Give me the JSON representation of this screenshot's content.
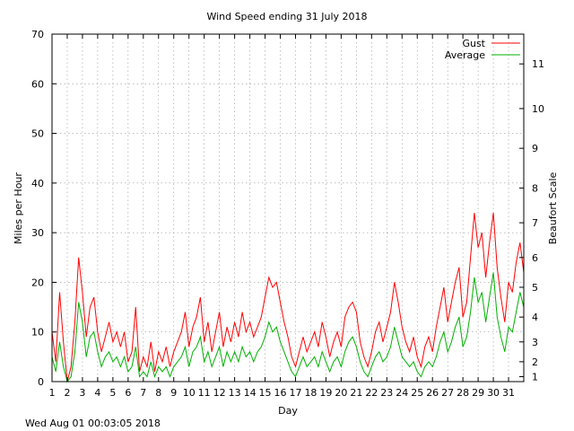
{
  "chart_data": {
    "type": "line",
    "title": "Wind Speed ending 31 July 2018",
    "xlabel": "Day",
    "ylabel": "Miles per Hour",
    "y2label": "Beaufort Scale",
    "footer": "Wed Aug 01 00:03:05 2018",
    "xlim": [
      1,
      32
    ],
    "ylim": [
      0,
      70
    ],
    "grid": true,
    "legend_position": "top-right",
    "x_ticks": [
      1,
      2,
      3,
      4,
      5,
      6,
      7,
      8,
      9,
      10,
      11,
      12,
      13,
      14,
      15,
      16,
      17,
      18,
      19,
      20,
      21,
      22,
      23,
      24,
      25,
      26,
      27,
      28,
      29,
      30,
      31
    ],
    "y_ticks": [
      0,
      10,
      20,
      30,
      40,
      50,
      60,
      70
    ],
    "beaufort_ticks": [
      {
        "label": "1",
        "mph": 1
      },
      {
        "label": "2",
        "mph": 4
      },
      {
        "label": "3",
        "mph": 8
      },
      {
        "label": "4",
        "mph": 13
      },
      {
        "label": "5",
        "mph": 19
      },
      {
        "label": "6",
        "mph": 25
      },
      {
        "label": "7",
        "mph": 32
      },
      {
        "label": "8",
        "mph": 39
      },
      {
        "label": "9",
        "mph": 47
      },
      {
        "label": "10",
        "mph": 55
      },
      {
        "label": "11",
        "mph": 64
      }
    ],
    "series": [
      {
        "name": "Gust",
        "color": "#ff0000",
        "points": [
          [
            1.0,
            10
          ],
          [
            1.25,
            4
          ],
          [
            1.5,
            18
          ],
          [
            1.75,
            8
          ],
          [
            2.0,
            0
          ],
          [
            2.25,
            3
          ],
          [
            2.5,
            12
          ],
          [
            2.75,
            25
          ],
          [
            3.0,
            18
          ],
          [
            3.25,
            9
          ],
          [
            3.5,
            15
          ],
          [
            3.75,
            17
          ],
          [
            4.0,
            10
          ],
          [
            4.25,
            6
          ],
          [
            4.5,
            9
          ],
          [
            4.75,
            12
          ],
          [
            5.0,
            8
          ],
          [
            5.25,
            10
          ],
          [
            5.5,
            7
          ],
          [
            5.75,
            10
          ],
          [
            6.0,
            4
          ],
          [
            6.25,
            6
          ],
          [
            6.5,
            15
          ],
          [
            6.75,
            2
          ],
          [
            7.0,
            5
          ],
          [
            7.25,
            3
          ],
          [
            7.5,
            8
          ],
          [
            7.75,
            2
          ],
          [
            8.0,
            6
          ],
          [
            8.25,
            4
          ],
          [
            8.5,
            7
          ],
          [
            8.75,
            3
          ],
          [
            9.0,
            6
          ],
          [
            9.25,
            8
          ],
          [
            9.5,
            10
          ],
          [
            9.75,
            14
          ],
          [
            10.0,
            7
          ],
          [
            10.25,
            11
          ],
          [
            10.5,
            13
          ],
          [
            10.75,
            17
          ],
          [
            11.0,
            8
          ],
          [
            11.25,
            12
          ],
          [
            11.5,
            6
          ],
          [
            11.75,
            10
          ],
          [
            12.0,
            14
          ],
          [
            12.25,
            7
          ],
          [
            12.5,
            11
          ],
          [
            12.75,
            8
          ],
          [
            13.0,
            12
          ],
          [
            13.25,
            9
          ],
          [
            13.5,
            14
          ],
          [
            13.75,
            10
          ],
          [
            14.0,
            12
          ],
          [
            14.25,
            9
          ],
          [
            14.5,
            11
          ],
          [
            14.75,
            13
          ],
          [
            15.0,
            17
          ],
          [
            15.25,
            21
          ],
          [
            15.5,
            19
          ],
          [
            15.75,
            20
          ],
          [
            16.0,
            16
          ],
          [
            16.25,
            12
          ],
          [
            16.5,
            9
          ],
          [
            16.75,
            5
          ],
          [
            17.0,
            3
          ],
          [
            17.25,
            6
          ],
          [
            17.5,
            9
          ],
          [
            17.75,
            6
          ],
          [
            18.0,
            8
          ],
          [
            18.25,
            10
          ],
          [
            18.5,
            7
          ],
          [
            18.75,
            12
          ],
          [
            19.0,
            9
          ],
          [
            19.25,
            5
          ],
          [
            19.5,
            8
          ],
          [
            19.75,
            10
          ],
          [
            20.0,
            7
          ],
          [
            20.25,
            13
          ],
          [
            20.5,
            15
          ],
          [
            20.75,
            16
          ],
          [
            21.0,
            14
          ],
          [
            21.25,
            8
          ],
          [
            21.5,
            5
          ],
          [
            21.75,
            3
          ],
          [
            22.0,
            6
          ],
          [
            22.25,
            10
          ],
          [
            22.5,
            12
          ],
          [
            22.75,
            8
          ],
          [
            23.0,
            11
          ],
          [
            23.25,
            14
          ],
          [
            23.5,
            20
          ],
          [
            23.75,
            16
          ],
          [
            24.0,
            11
          ],
          [
            24.25,
            8
          ],
          [
            24.5,
            6
          ],
          [
            24.75,
            9
          ],
          [
            25.0,
            5
          ],
          [
            25.25,
            3
          ],
          [
            25.5,
            7
          ],
          [
            25.75,
            9
          ],
          [
            26.0,
            6
          ],
          [
            26.25,
            11
          ],
          [
            26.5,
            15
          ],
          [
            26.75,
            19
          ],
          [
            27.0,
            12
          ],
          [
            27.25,
            16
          ],
          [
            27.5,
            20
          ],
          [
            27.75,
            23
          ],
          [
            28.0,
            13
          ],
          [
            28.25,
            16
          ],
          [
            28.5,
            25
          ],
          [
            28.75,
            34
          ],
          [
            29.0,
            27
          ],
          [
            29.25,
            30
          ],
          [
            29.5,
            21
          ],
          [
            29.75,
            28
          ],
          [
            30.0,
            34
          ],
          [
            30.25,
            23
          ],
          [
            30.5,
            17
          ],
          [
            30.75,
            12
          ],
          [
            31.0,
            20
          ],
          [
            31.25,
            18
          ],
          [
            31.5,
            24
          ],
          [
            31.75,
            28
          ],
          [
            32.0,
            22
          ]
        ]
      },
      {
        "name": "Average",
        "color": "#00b000",
        "points": [
          [
            1.0,
            5
          ],
          [
            1.25,
            2
          ],
          [
            1.5,
            8
          ],
          [
            1.75,
            3
          ],
          [
            2.0,
            0
          ],
          [
            2.25,
            1
          ],
          [
            2.5,
            6
          ],
          [
            2.75,
            16
          ],
          [
            3.0,
            12
          ],
          [
            3.25,
            5
          ],
          [
            3.5,
            9
          ],
          [
            3.75,
            10
          ],
          [
            4.0,
            6
          ],
          [
            4.25,
            3
          ],
          [
            4.5,
            5
          ],
          [
            4.75,
            6
          ],
          [
            5.0,
            4
          ],
          [
            5.25,
            5
          ],
          [
            5.5,
            3
          ],
          [
            5.75,
            5
          ],
          [
            6.0,
            2
          ],
          [
            6.25,
            3
          ],
          [
            6.5,
            7
          ],
          [
            6.75,
            1
          ],
          [
            7.0,
            2
          ],
          [
            7.25,
            1
          ],
          [
            7.5,
            4
          ],
          [
            7.75,
            1
          ],
          [
            8.0,
            3
          ],
          [
            8.25,
            2
          ],
          [
            8.5,
            3
          ],
          [
            8.75,
            1
          ],
          [
            9.0,
            3
          ],
          [
            9.25,
            4
          ],
          [
            9.5,
            5
          ],
          [
            9.75,
            7
          ],
          [
            10.0,
            3
          ],
          [
            10.25,
            6
          ],
          [
            10.5,
            7
          ],
          [
            10.75,
            9
          ],
          [
            11.0,
            4
          ],
          [
            11.25,
            6
          ],
          [
            11.5,
            3
          ],
          [
            11.75,
            5
          ],
          [
            12.0,
            7
          ],
          [
            12.25,
            3
          ],
          [
            12.5,
            6
          ],
          [
            12.75,
            4
          ],
          [
            13.0,
            6
          ],
          [
            13.25,
            4
          ],
          [
            13.5,
            7
          ],
          [
            13.75,
            5
          ],
          [
            14.0,
            6
          ],
          [
            14.25,
            4
          ],
          [
            14.5,
            6
          ],
          [
            14.75,
            7
          ],
          [
            15.0,
            9
          ],
          [
            15.25,
            12
          ],
          [
            15.5,
            10
          ],
          [
            15.75,
            11
          ],
          [
            16.0,
            8
          ],
          [
            16.25,
            6
          ],
          [
            16.5,
            4
          ],
          [
            16.75,
            2
          ],
          [
            17.0,
            1
          ],
          [
            17.25,
            3
          ],
          [
            17.5,
            5
          ],
          [
            17.75,
            3
          ],
          [
            18.0,
            4
          ],
          [
            18.25,
            5
          ],
          [
            18.5,
            3
          ],
          [
            18.75,
            6
          ],
          [
            19.0,
            4
          ],
          [
            19.25,
            2
          ],
          [
            19.5,
            4
          ],
          [
            19.75,
            5
          ],
          [
            20.0,
            3
          ],
          [
            20.25,
            6
          ],
          [
            20.5,
            8
          ],
          [
            20.75,
            9
          ],
          [
            21.0,
            7
          ],
          [
            21.25,
            4
          ],
          [
            21.5,
            2
          ],
          [
            21.75,
            1
          ],
          [
            22.0,
            3
          ],
          [
            22.25,
            5
          ],
          [
            22.5,
            6
          ],
          [
            22.75,
            4
          ],
          [
            23.0,
            5
          ],
          [
            23.25,
            7
          ],
          [
            23.5,
            11
          ],
          [
            23.75,
            8
          ],
          [
            24.0,
            5
          ],
          [
            24.25,
            4
          ],
          [
            24.5,
            3
          ],
          [
            24.75,
            4
          ],
          [
            25.0,
            2
          ],
          [
            25.25,
            1
          ],
          [
            25.5,
            3
          ],
          [
            25.75,
            4
          ],
          [
            26.0,
            3
          ],
          [
            26.25,
            5
          ],
          [
            26.5,
            8
          ],
          [
            26.75,
            10
          ],
          [
            27.0,
            6
          ],
          [
            27.25,
            8
          ],
          [
            27.5,
            11
          ],
          [
            27.75,
            13
          ],
          [
            28.0,
            7
          ],
          [
            28.25,
            9
          ],
          [
            28.5,
            14
          ],
          [
            28.75,
            21
          ],
          [
            29.0,
            16
          ],
          [
            29.25,
            18
          ],
          [
            29.5,
            12
          ],
          [
            29.75,
            17
          ],
          [
            30.0,
            22
          ],
          [
            30.25,
            13
          ],
          [
            30.5,
            9
          ],
          [
            30.75,
            6
          ],
          [
            31.0,
            11
          ],
          [
            31.25,
            10
          ],
          [
            31.5,
            14
          ],
          [
            31.75,
            18
          ],
          [
            32.0,
            15
          ]
        ]
      }
    ]
  }
}
